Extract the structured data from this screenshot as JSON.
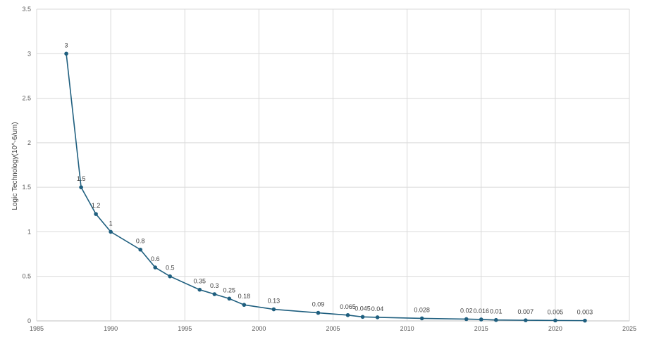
{
  "chart_data": {
    "type": "line",
    "title": "",
    "xlabel": "",
    "ylabel": "Logic Technology(10^-6/um)",
    "xlim": [
      1985,
      2025
    ],
    "ylim": [
      0,
      3.5
    ],
    "x_ticks": [
      1985,
      1990,
      1995,
      2000,
      2005,
      2010,
      2015,
      2020,
      2025
    ],
    "y_ticks": [
      0,
      0.5,
      1,
      1.5,
      2,
      2.5,
      3,
      3.5
    ],
    "grid": true,
    "line_color": "#1f5f7f",
    "marker_color": "#1f5f7f",
    "series": [
      {
        "x": [
          1987,
          1988,
          1989,
          1990,
          1992,
          1993,
          1994,
          1996,
          1997,
          1998,
          1999,
          2001,
          2004,
          2006,
          2007,
          2008,
          2011,
          2014,
          2015,
          2016,
          2018,
          2020,
          2022
        ],
        "values": [
          3,
          1.5,
          1.2,
          1,
          0.8,
          0.6,
          0.5,
          0.35,
          0.3,
          0.25,
          0.18,
          0.13,
          0.09,
          0.065,
          0.045,
          0.04,
          0.028,
          0.02,
          0.016,
          0.01,
          0.007,
          0.005,
          0.003
        ],
        "labels": [
          "3",
          "1.5",
          "1.2",
          "1",
          "0.8",
          "0.6",
          "0.5",
          "0.35",
          "0.3",
          "0.25",
          "0.18",
          "0.13",
          "0.09",
          "0.065",
          "0.045",
          "0.04",
          "0.028",
          "0.02",
          "0.016",
          "0.01",
          "0.007",
          "0.005",
          "0.003"
        ]
      }
    ]
  }
}
